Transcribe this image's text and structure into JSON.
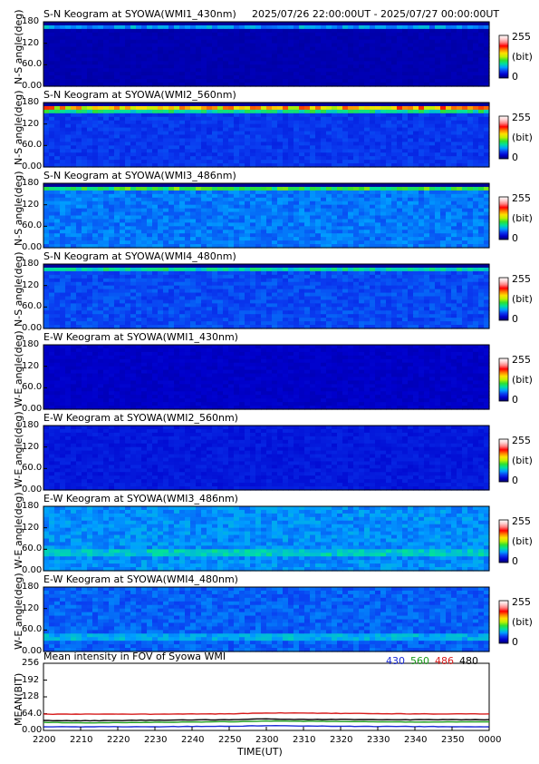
{
  "header": {
    "time_range": "2025/07/26 22:00:00UT - 2025/07/27 00:00:00UT"
  },
  "colors": {
    "colormap": [
      "#00006b",
      "#0000cc",
      "#0a3cf0",
      "#00a0ff",
      "#00e0a0",
      "#30e030",
      "#c0f000",
      "#ffe000",
      "#ff8000",
      "#ff0000",
      "#ff8080",
      "#ffd0d0",
      "#ffffff"
    ],
    "series_430": "#1a2bd6",
    "series_560": "#1b9b1b",
    "series_486": "#d61a1a",
    "series_480": "#000000"
  },
  "panels": [
    {
      "title": "S-N Keogram at SYOWA(WMI1_430nm)",
      "ylabel": "N-S angle(deg)",
      "yticks": [
        "180",
        "120",
        "60.0",
        "0.00"
      ],
      "cbar_ticks": [
        "255",
        "(bit)",
        "0"
      ]
    },
    {
      "title": "S-N Keogram at SYOWA(WMI2_560nm)",
      "ylabel": "N-S angle(deg)",
      "yticks": [
        "180",
        "120",
        "60.0",
        "0.00"
      ],
      "cbar_ticks": [
        "255",
        "(bit)",
        "0"
      ]
    },
    {
      "title": "S-N Keogram at SYOWA(WMI3_486nm)",
      "ylabel": "N-S angle(deg)",
      "yticks": [
        "180",
        "120",
        "60.0",
        "0.00"
      ],
      "cbar_ticks": [
        "255",
        "(bit)",
        "0"
      ]
    },
    {
      "title": "S-N Keogram at SYOWA(WMI4_480nm)",
      "ylabel": "N-S angle(deg)",
      "yticks": [
        "180",
        "120",
        "60.0",
        "0.00"
      ],
      "cbar_ticks": [
        "255",
        "(bit)",
        "0"
      ]
    },
    {
      "title": "E-W Keogram at SYOWA(WMI1_430nm)",
      "ylabel": "W-E angle(deg)",
      "yticks": [
        "180",
        "120",
        "60.0",
        "0.00"
      ],
      "cbar_ticks": [
        "255",
        "(bit)",
        "0"
      ]
    },
    {
      "title": "E-W Keogram at SYOWA(WMI2_560nm)",
      "ylabel": "W-E angle(deg)",
      "yticks": [
        "180",
        "120",
        "60.0",
        "0.00"
      ],
      "cbar_ticks": [
        "255",
        "(bit)",
        "0"
      ]
    },
    {
      "title": "E-W Keogram at SYOWA(WMI3_486nm)",
      "ylabel": "W-E angle(deg)",
      "yticks": [
        "180",
        "120",
        "60.0",
        "0.00"
      ],
      "cbar_ticks": [
        "255",
        "(bit)",
        "0"
      ]
    },
    {
      "title": "E-W Keogram at SYOWA(WMI4_480nm)",
      "ylabel": "W-E angle(deg)",
      "yticks": [
        "180",
        "120",
        "60.0",
        "0.00"
      ],
      "cbar_ticks": [
        "255",
        "(bit)",
        "0"
      ]
    }
  ],
  "mean_panel": {
    "title": "Mean intensity in FOV of Syowa WMI",
    "ylabel": "MEAN(BIT)",
    "yticks": [
      "256",
      "192",
      "128",
      "64.0",
      "0.00"
    ],
    "legend": [
      "430",
      "560",
      "486",
      "480"
    ]
  },
  "xaxis": {
    "ticks": [
      "2200",
      "2210",
      "2220",
      "2230",
      "2240",
      "2250",
      "2300",
      "2310",
      "2320",
      "2330",
      "2340",
      "2350",
      "0000"
    ],
    "label": "TIME(UT)"
  },
  "chart_data": [
    {
      "type": "heatmap",
      "title": "S-N Keogram at SYOWA(WMI1_430nm)",
      "ylabel": "N-S angle(deg)",
      "ylim": [
        0,
        180
      ],
      "color_range": [
        0,
        255
      ],
      "description_values": {
        "background_level": 15,
        "band_angle": 165,
        "band_level": 70
      }
    },
    {
      "type": "heatmap",
      "title": "S-N Keogram at SYOWA(WMI2_560nm)",
      "ylabel": "N-S angle(deg)",
      "ylim": [
        0,
        180
      ],
      "color_range": [
        0,
        255
      ],
      "description_values": {
        "background_level": 40,
        "band_angle": 162,
        "band_level": 230
      }
    },
    {
      "type": "heatmap",
      "title": "S-N Keogram at SYOWA(WMI3_486nm)",
      "ylabel": "N-S angle(deg)",
      "ylim": [
        0,
        180
      ],
      "color_range": [
        0,
        255
      ],
      "description_values": {
        "background_level": 55,
        "band_angle": 165,
        "band_level": 110
      }
    },
    {
      "type": "heatmap",
      "title": "S-N Keogram at SYOWA(WMI4_480nm)",
      "ylabel": "N-S angle(deg)",
      "ylim": [
        0,
        180
      ],
      "color_range": [
        0,
        255
      ],
      "description_values": {
        "background_level": 45,
        "band_angle": 165,
        "band_level": 90
      }
    },
    {
      "type": "heatmap",
      "title": "E-W Keogram at SYOWA(WMI1_430nm)",
      "ylabel": "W-E angle(deg)",
      "ylim": [
        0,
        180
      ],
      "color_range": [
        0,
        255
      ],
      "description_values": {
        "background_level": 20
      }
    },
    {
      "type": "heatmap",
      "title": "E-W Keogram at SYOWA(WMI2_560nm)",
      "ylabel": "W-E angle(deg)",
      "ylim": [
        0,
        180
      ],
      "color_range": [
        0,
        255
      ],
      "description_values": {
        "background_level": 30
      }
    },
    {
      "type": "heatmap",
      "title": "E-W Keogram at SYOWA(WMI3_486nm)",
      "ylabel": "W-E angle(deg)",
      "ylim": [
        0,
        180
      ],
      "color_range": [
        0,
        255
      ],
      "description_values": {
        "background_level": 60,
        "band_angle": 50,
        "band_level": 100
      }
    },
    {
      "type": "heatmap",
      "title": "E-W Keogram at SYOWA(WMI4_480nm)",
      "ylabel": "W-E angle(deg)",
      "ylim": [
        0,
        180
      ],
      "color_range": [
        0,
        255
      ],
      "description_values": {
        "background_level": 50,
        "band_angle": 40,
        "band_level": 90
      }
    },
    {
      "type": "line",
      "title": "Mean intensity in FOV of Syowa WMI",
      "xlabel": "TIME(UT)",
      "ylabel": "MEAN(BIT)",
      "ylim": [
        0,
        256
      ],
      "x": [
        "2200",
        "2210",
        "2220",
        "2230",
        "2240",
        "2250",
        "2300",
        "2310",
        "2320",
        "2330",
        "2340",
        "2350",
        "0000"
      ],
      "series": [
        {
          "name": "430",
          "values": [
            14,
            14,
            14,
            14,
            15,
            16,
            18,
            17,
            16,
            15,
            15,
            14,
            14
          ]
        },
        {
          "name": "560",
          "values": [
            30,
            29,
            30,
            31,
            32,
            33,
            36,
            35,
            34,
            33,
            32,
            33,
            33
          ]
        },
        {
          "name": "486",
          "values": [
            62,
            62,
            62,
            62,
            63,
            63,
            67,
            66,
            65,
            64,
            63,
            63,
            63
          ]
        },
        {
          "name": "480",
          "values": [
            38,
            37,
            38,
            39,
            40,
            41,
            44,
            42,
            42,
            41,
            41,
            41,
            41
          ]
        }
      ]
    }
  ]
}
